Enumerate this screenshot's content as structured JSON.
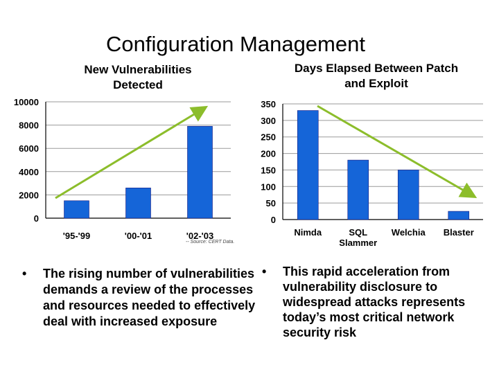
{
  "slide": {
    "title": "Configuration Management",
    "source_note": "-- Source: CERT Data."
  },
  "chart_data": [
    {
      "type": "bar",
      "title": "New Vulnerabilities Detected",
      "categories": [
        "'95-'99",
        "'00-'01",
        "'02-'03"
      ],
      "values": [
        1500,
        2600,
        7900
      ],
      "ylim": [
        0,
        10000
      ],
      "yticks": [
        0,
        2000,
        4000,
        6000,
        8000,
        10000
      ],
      "bar_color": "#1565d8",
      "grid": true,
      "trend_arrow": {
        "direction": "up",
        "color": "#8cbd2b"
      }
    },
    {
      "type": "bar",
      "title": "Days Elapsed Between Patch and Exploit",
      "categories": [
        "Nimda",
        "SQL Slammer",
        "Welchia",
        "Blaster"
      ],
      "values": [
        330,
        180,
        150,
        25
      ],
      "ylim": [
        0,
        350
      ],
      "yticks": [
        0,
        50,
        100,
        150,
        200,
        250,
        300,
        350
      ],
      "bar_color": "#1565d8",
      "grid": true,
      "trend_arrow": {
        "direction": "down",
        "color": "#8cbd2b"
      }
    }
  ],
  "bullets": {
    "left": "The rising number of vulnerabilities demands a review of the processes and resources needed to effectively deal with increased exposure",
    "right": "This rapid acceleration from vulnerability disclosure to widespread attacks represents today’s most critical network security risk",
    "marker": "•"
  }
}
